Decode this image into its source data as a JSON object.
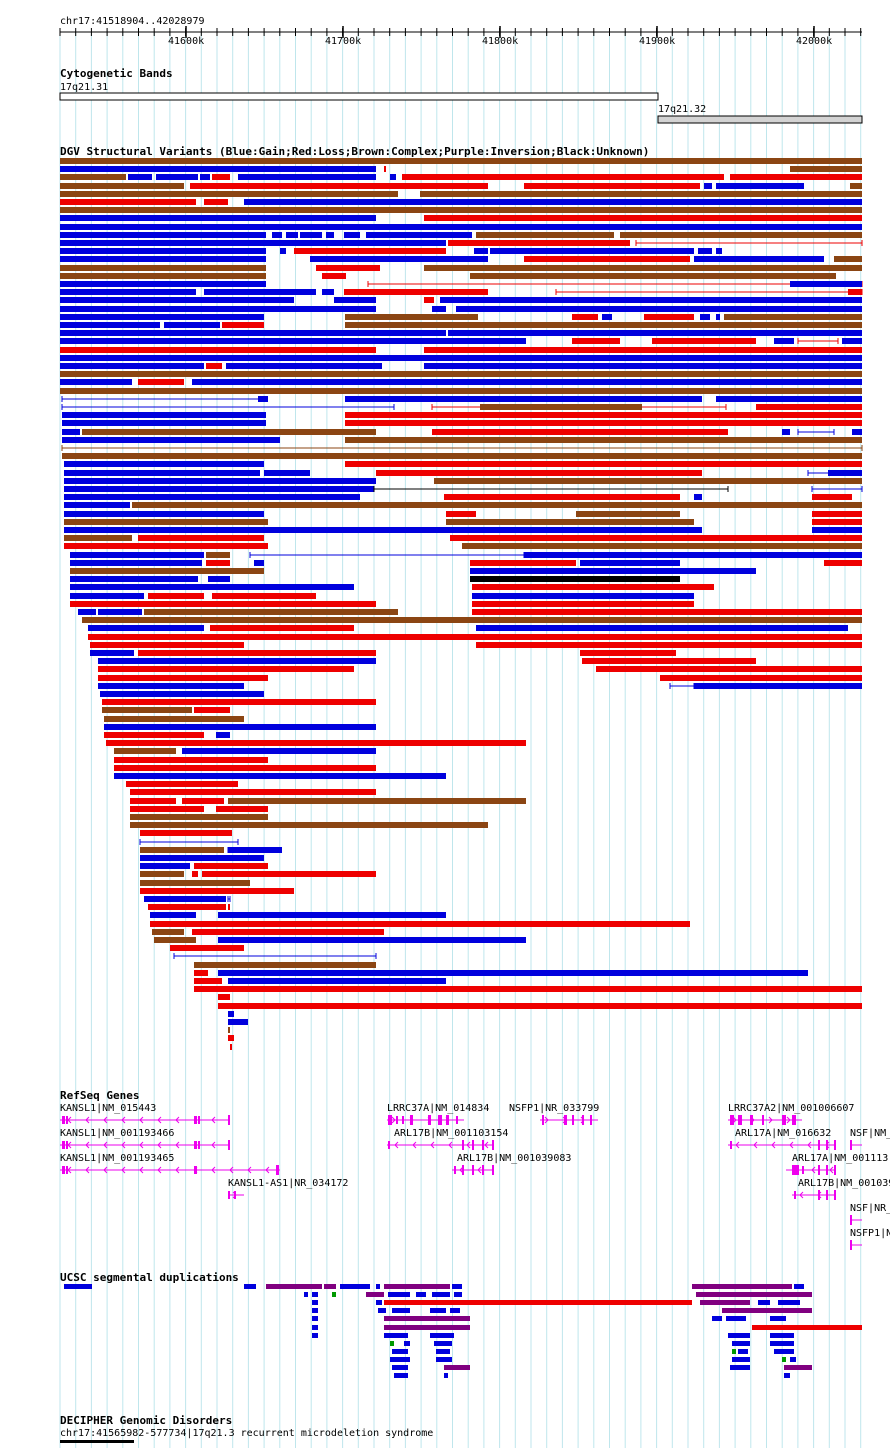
{
  "region": "chr17:41518904..42028979",
  "ruler": {
    "ticks": [
      "41600k",
      "41700k",
      "41800k",
      "41900k",
      "42000k"
    ]
  },
  "tracks": {
    "cytobands": {
      "title": "Cytogenetic Bands",
      "bands": [
        {
          "name": "17q21.31",
          "color": "#ffffff"
        },
        {
          "name": "17q21.32",
          "color": "#d3d3d3"
        }
      ]
    },
    "dgv": {
      "title": "DGV Structural Variants (Blue:Gain;Red:Loss;Brown:Complex;Purple:Inversion;Black:Unknown)",
      "legend_colors": {
        "gain": "#0000dd",
        "loss": "#ee0000",
        "complex": "#8b4513",
        "inversion": "#800080",
        "unknown": "#000000"
      }
    },
    "refseq": {
      "title": "RefSeq Genes",
      "color": "#ee00ee",
      "genes": [
        "KANSL1|NM_015443",
        "KANSL1|NM_001193466",
        "KANSL1|NM_001193465",
        "KANSL1-AS1|NR_034172",
        "LRRC37A|NM_014834",
        "ARL17B|NM_001103154",
        "ARL17B|NM_001039083",
        "NSFP1|NR_033799",
        "LRRC37A2|NM_001006607",
        "ARL17A|NM_016632",
        "ARL17A|NM_001113",
        "ARL17B|NM_001039",
        "NSF|NM_",
        "NSF|NR_",
        "NSFP1|N"
      ]
    },
    "segdup": {
      "title": "UCSC segmental duplications",
      "colors": {
        "blue": "#0000dd",
        "purple": "#800080",
        "red": "#ee0000",
        "green": "#009900"
      }
    },
    "decipher": {
      "title": "DECIPHER Genomic Disorders",
      "item": "chr17:41565982-577734|17q21.3 recurrent microdeletion syndrome"
    }
  }
}
